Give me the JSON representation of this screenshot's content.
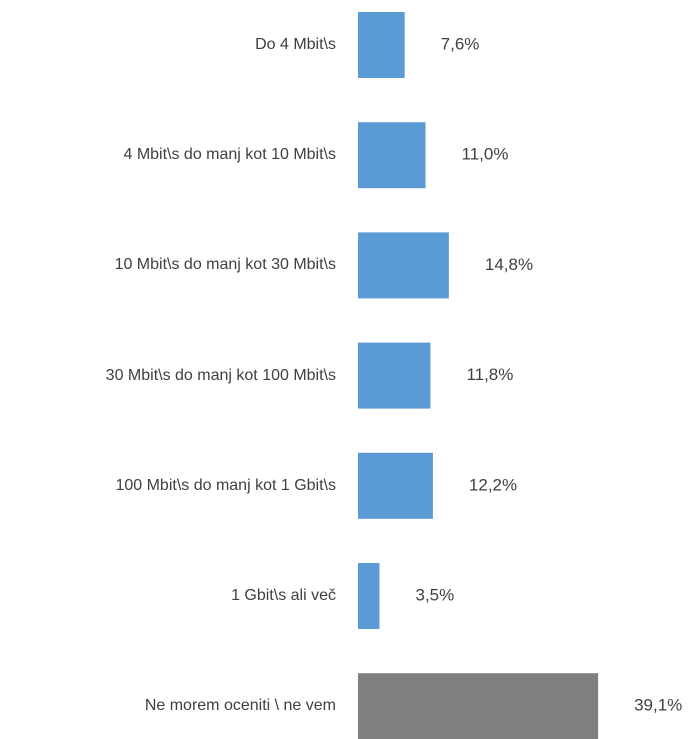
{
  "chart_data": {
    "type": "bar",
    "orientation": "horizontal",
    "categories": [
      "Do 4 Mbit\\s",
      "4 Mbit\\s do manj kot 10 Mbit\\s",
      "10 Mbit\\s do manj kot 30 Mbit\\s",
      "30 Mbit\\s do manj kot 100 Mbit\\s",
      "100 Mbit\\s do manj kot 1 Gbit\\s",
      "1 Gbit\\s ali več",
      "Ne morem oceniti \\ ne vem"
    ],
    "values": [
      7.6,
      11.0,
      14.8,
      11.8,
      12.2,
      3.5,
      39.1
    ],
    "value_labels": [
      "7,6%",
      "11,0%",
      "14,8%",
      "11,8%",
      "12,2%",
      "3,5%",
      "39,1%"
    ],
    "colors": [
      "#5b9bd5",
      "#5b9bd5",
      "#5b9bd5",
      "#5b9bd5",
      "#5b9bd5",
      "#5b9bd5",
      "#7f7f7f"
    ]
  }
}
